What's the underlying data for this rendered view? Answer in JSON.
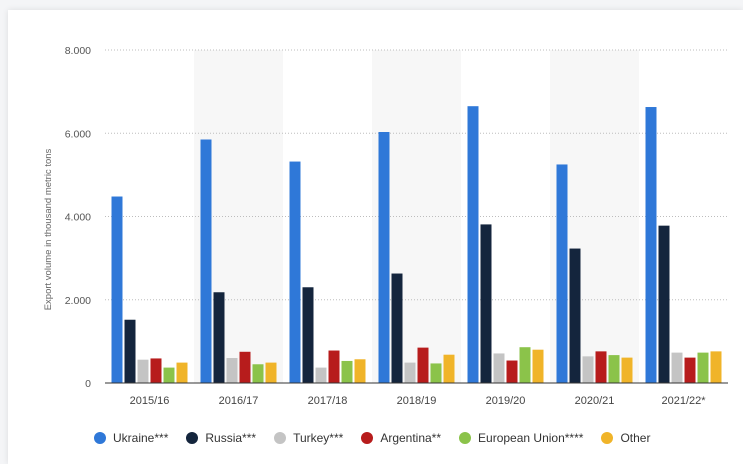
{
  "chart_data": {
    "type": "bar",
    "ylabel": "Export volume in thousand metric tons",
    "xlabel": "",
    "ylim": [
      0,
      8000
    ],
    "yticks": [
      0,
      2000,
      4000,
      6000,
      8000
    ],
    "ytick_labels": [
      "0",
      "2.000",
      "4.000",
      "6.000",
      "8.000"
    ],
    "grid": true,
    "legend_position": "bottom",
    "categories": [
      "2015/16",
      "2016/17",
      "2017/18",
      "2018/19",
      "2019/20",
      "2020/21",
      "2021/22*"
    ],
    "series": [
      {
        "name": "Ukraine***",
        "color": "#2f78d8",
        "values": [
          4480,
          5850,
          5320,
          6030,
          6650,
          5250,
          6630
        ]
      },
      {
        "name": "Russia***",
        "color": "#14253d",
        "values": [
          1520,
          2180,
          2300,
          2630,
          3810,
          3230,
          3780
        ]
      },
      {
        "name": "Turkey***",
        "color": "#c4c4c4",
        "values": [
          560,
          600,
          370,
          490,
          710,
          640,
          730
        ]
      },
      {
        "name": "Argentina**",
        "color": "#b71c1c",
        "values": [
          590,
          750,
          780,
          850,
          540,
          760,
          610
        ]
      },
      {
        "name": "European Union****",
        "color": "#8bc34a",
        "values": [
          370,
          450,
          530,
          470,
          860,
          670,
          730
        ]
      },
      {
        "name": "Other",
        "color": "#f0b429",
        "values": [
          490,
          490,
          570,
          680,
          800,
          610,
          760
        ]
      }
    ]
  }
}
